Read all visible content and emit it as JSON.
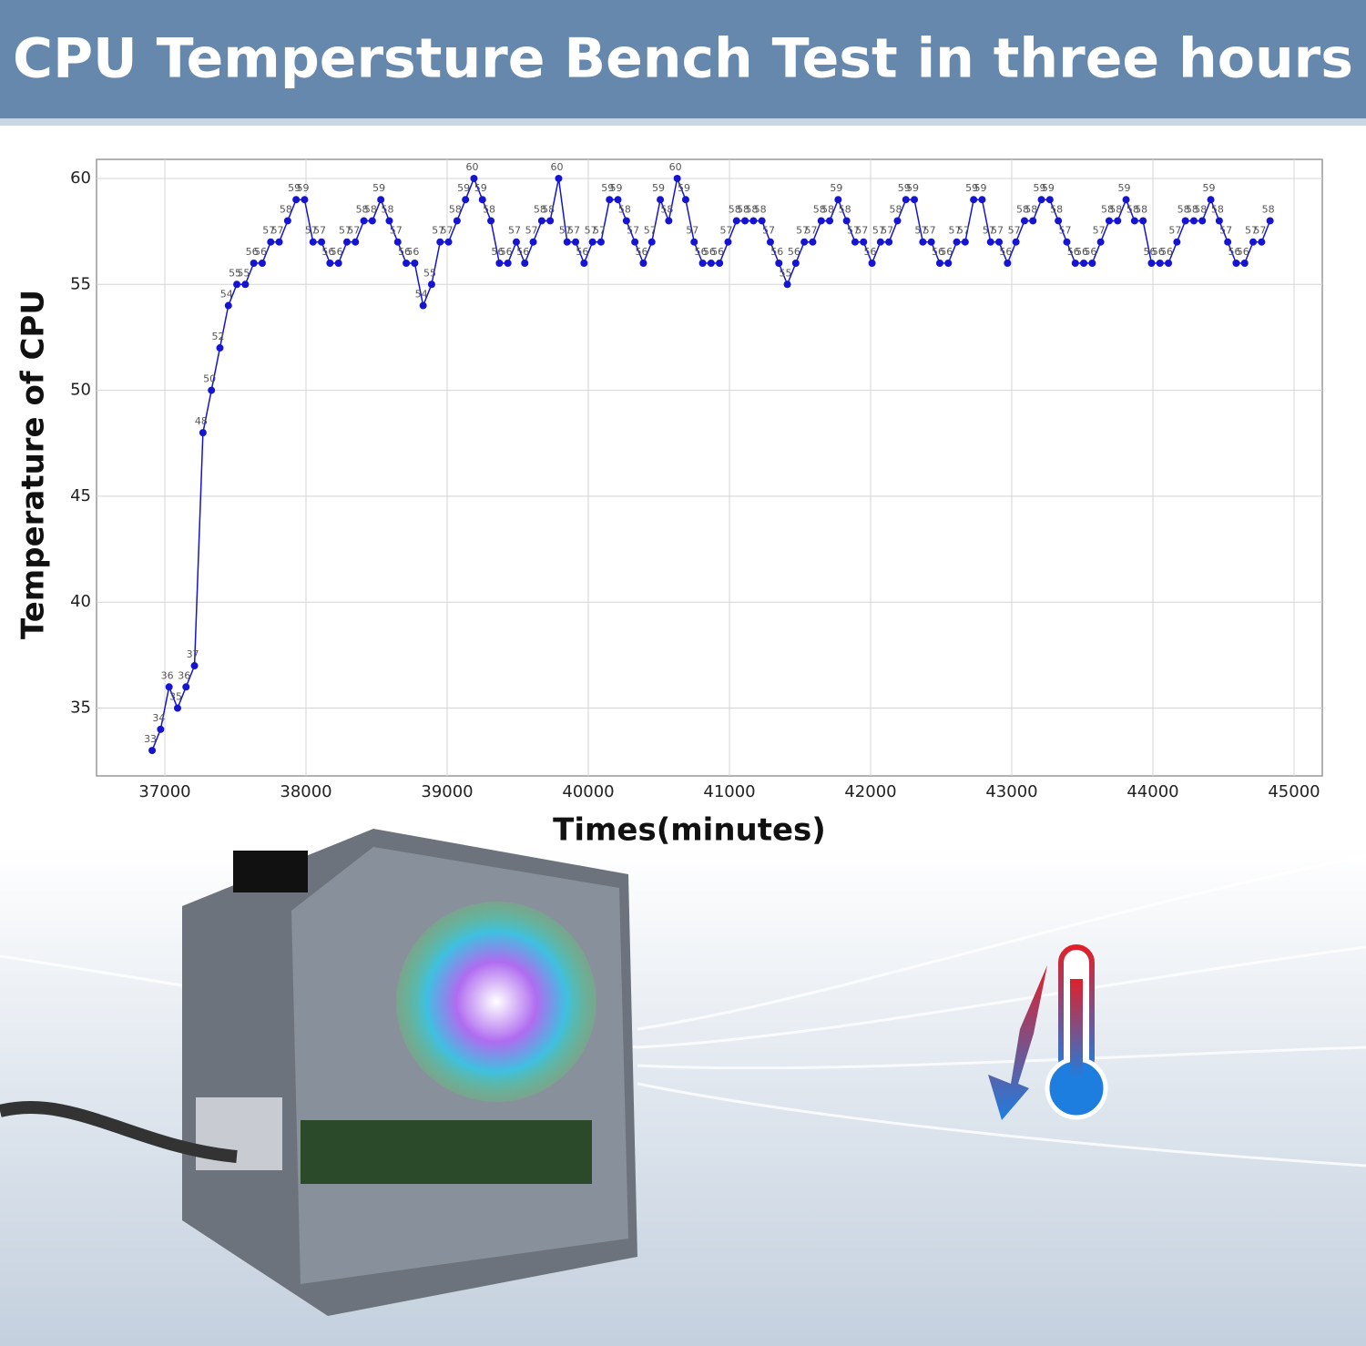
{
  "chart_data": {
    "type": "line",
    "title": "CPU Tempersture Bench Test in three hours",
    "x_label": "Times(minutes)",
    "y_label": "Temperature of CPU",
    "x": [
      36910,
      36970,
      37030,
      37090,
      37150,
      37210,
      37270,
      37330,
      37390,
      37450,
      37510,
      37570,
      37630,
      37690,
      37750,
      37810,
      37870,
      37930,
      37990,
      38050,
      38110,
      38170,
      38230,
      38290,
      38350,
      38410,
      38470,
      38530,
      38590,
      38650,
      38710,
      38770,
      38830,
      38890,
      38950,
      39010,
      39070,
      39130,
      39190,
      39250,
      39310,
      39370,
      39430,
      39490,
      39550,
      39610,
      39670,
      39730,
      39790,
      39850,
      39910,
      39970,
      40030,
      40090,
      40150,
      40210,
      40270,
      40330,
      40390,
      40450,
      40510,
      40570,
      40630,
      40690,
      40750,
      40810,
      40870,
      40930,
      40990,
      41050,
      41110,
      41170,
      41230,
      41290,
      41350,
      41410,
      41470,
      41530,
      41590,
      41650,
      41710,
      41770,
      41830,
      41890,
      41950,
      42010,
      42070,
      42130,
      42190,
      42250,
      42310,
      42370,
      42430,
      42490,
      42550,
      42610,
      42670,
      42730,
      42790,
      42850,
      42910,
      42970,
      43030,
      43090,
      43150,
      43210,
      43270,
      43330,
      43390,
      43450,
      43510,
      43570,
      43630,
      43690,
      43750,
      43810,
      43870,
      43930,
      43990,
      44050,
      44110,
      44170,
      44230,
      44290,
      44350,
      44410,
      44470,
      44530,
      44590,
      44650,
      44710,
      44770,
      44830
    ],
    "values": [
      33,
      34,
      36,
      35,
      36,
      37,
      48,
      50,
      52,
      54,
      55,
      55,
      56,
      56,
      57,
      57,
      58,
      59,
      59,
      57,
      57,
      56,
      56,
      57,
      57,
      58,
      58,
      59,
      58,
      57,
      56,
      56,
      54,
      55,
      57,
      57,
      58,
      59,
      60,
      59,
      58,
      56,
      56,
      57,
      56,
      57,
      58,
      58,
      60,
      57,
      57,
      56,
      57,
      57,
      59,
      59,
      58,
      57,
      56,
      57,
      59,
      58,
      60,
      59,
      57,
      56,
      56,
      56,
      57,
      58,
      58,
      58,
      58,
      57,
      56,
      55,
      56,
      57,
      57,
      58,
      58,
      59,
      58,
      57,
      57,
      56,
      57,
      57,
      58,
      59,
      59,
      57,
      57,
      56,
      56,
      57,
      57,
      59,
      59,
      57,
      57,
      56,
      57,
      58,
      58,
      59,
      59,
      58,
      57,
      56,
      56,
      56,
      57,
      58,
      58,
      59,
      58,
      58,
      56,
      56,
      56,
      57,
      58,
      58,
      58,
      59,
      58,
      57,
      56,
      56,
      57,
      57,
      58
    ],
    "color": "#1414d2",
    "xlim": [
      36516,
      45200
    ],
    "ylim": [
      31.8,
      60.9
    ],
    "xticks": [
      37000,
      38000,
      39000,
      40000,
      41000,
      42000,
      43000,
      44000,
      45000
    ],
    "yticks": [
      35,
      40,
      45,
      50,
      55,
      60
    ],
    "grid": true
  }
}
